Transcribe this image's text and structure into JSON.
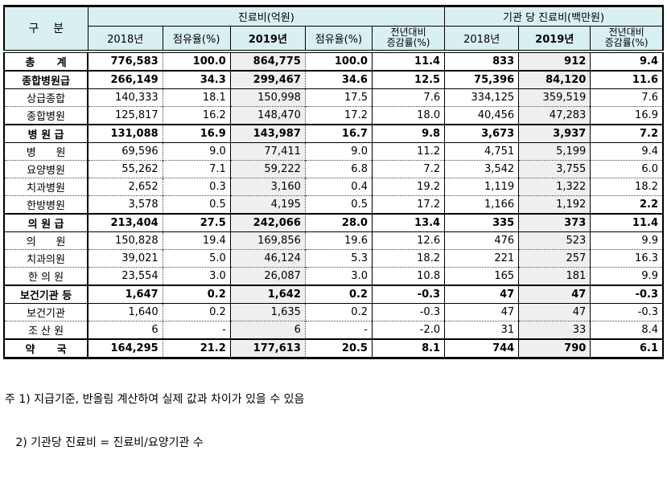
{
  "colors": {
    "header_bg": "#d9f0f2",
    "col2019_bg": "#efefef",
    "border": "#000000"
  },
  "table": {
    "corner_label": "구    분",
    "group_headers": {
      "expense": "진료비(억원)",
      "per_institution": "기관 당 진료비(백만원)"
    },
    "columns": [
      {
        "label": "2018년"
      },
      {
        "label": "점유율(%)"
      },
      {
        "label": "2019년",
        "bold": true
      },
      {
        "label": "점유율(%)"
      },
      {
        "label": "전년대비\n증감률(%)"
      },
      {
        "label": "2018년"
      },
      {
        "label": "2019년",
        "bold": true
      },
      {
        "label": "전년대비\n증감률(%)"
      }
    ],
    "rows": [
      {
        "label": "총      계",
        "values": [
          "776,583",
          "100.0",
          "864,775",
          "100.0",
          "11.4",
          "833",
          "912",
          "9.4"
        ],
        "bold": true,
        "top": "solid"
      },
      {
        "label": "종합병원급",
        "values": [
          "266,149",
          "34.3",
          "299,467",
          "34.6",
          "12.5",
          "75,396",
          "84,120",
          "11.6"
        ],
        "bold": true,
        "top": "solid"
      },
      {
        "label": "상급종합",
        "values": [
          "140,333",
          "18.1",
          "150,998",
          "17.5",
          "7.6",
          "334,125",
          "359,519",
          "7.6"
        ],
        "bold": false,
        "top": "thin"
      },
      {
        "label": "종합병원",
        "values": [
          "125,817",
          "16.2",
          "148,470",
          "17.2",
          "18.0",
          "40,456",
          "47,283",
          "16.9"
        ],
        "bold": false,
        "top": "dotted"
      },
      {
        "label": "병 원 급",
        "values": [
          "131,088",
          "16.9",
          "143,987",
          "16.7",
          "9.8",
          "3,673",
          "3,937",
          "7.2"
        ],
        "bold": true,
        "top": "solid"
      },
      {
        "label": "병      원",
        "values": [
          "69,596",
          "9.0",
          "77,411",
          "9.0",
          "11.2",
          "4,751",
          "5,199",
          "9.4"
        ],
        "bold": false,
        "top": "thin"
      },
      {
        "label": "요양병원",
        "values": [
          "55,262",
          "7.1",
          "59,222",
          "6.8",
          "7.2",
          "3,542",
          "3,755",
          "6.0"
        ],
        "bold": false,
        "top": "dotted"
      },
      {
        "label": "치과병원",
        "values": [
          "2,652",
          "0.3",
          "3,160",
          "0.4",
          "19.2",
          "1,119",
          "1,322",
          "18.2"
        ],
        "bold": false,
        "top": "dotted"
      },
      {
        "label": "한방병원",
        "values": [
          "3,578",
          "0.5",
          "4,195",
          "0.5",
          "17.2",
          "1,166",
          "1,192",
          "2.2"
        ],
        "bold": false,
        "top": "dotted",
        "bold_cells": [
          7
        ]
      },
      {
        "label": "의 원 급",
        "values": [
          "213,404",
          "27.5",
          "242,066",
          "28.0",
          "13.4",
          "335",
          "373",
          "11.4"
        ],
        "bold": true,
        "top": "solid"
      },
      {
        "label": "의      원",
        "values": [
          "150,828",
          "19.4",
          "169,856",
          "19.6",
          "12.6",
          "476",
          "523",
          "9.9"
        ],
        "bold": false,
        "top": "thin"
      },
      {
        "label": "치과의원",
        "values": [
          "39,021",
          "5.0",
          "46,124",
          "5.3",
          "18.2",
          "221",
          "257",
          "16.3"
        ],
        "bold": false,
        "top": "dotted"
      },
      {
        "label": "한 의 원",
        "values": [
          "23,554",
          "3.0",
          "26,087",
          "3.0",
          "10.8",
          "165",
          "181",
          "9.9"
        ],
        "bold": false,
        "top": "dotted"
      },
      {
        "label": "보건기관 등",
        "values": [
          "1,647",
          "0.2",
          "1,642",
          "0.2",
          "-0.3",
          "47",
          "47",
          "-0.3"
        ],
        "bold": true,
        "top": "solid"
      },
      {
        "label": "보건기관",
        "values": [
          "1,640",
          "0.2",
          "1,635",
          "0.2",
          "-0.3",
          "47",
          "47",
          "-0.3"
        ],
        "bold": false,
        "top": "thin"
      },
      {
        "label": "조 산 원",
        "values": [
          "6",
          "-",
          "6",
          "-",
          "-2.0",
          "31",
          "33",
          "8.4"
        ],
        "bold": false,
        "top": "dotted"
      },
      {
        "label": "약      국",
        "values": [
          "164,295",
          "21.2",
          "177,613",
          "20.5",
          "8.1",
          "744",
          "790",
          "6.1"
        ],
        "bold": true,
        "top": "solid"
      }
    ]
  },
  "footnotes": [
    "주 1) 지급기준, 반올림 계산하여 실제 값과 차이가 있을 수 있음",
    "   2) 기관당 진료비 = 진료비/요양기관 수"
  ]
}
